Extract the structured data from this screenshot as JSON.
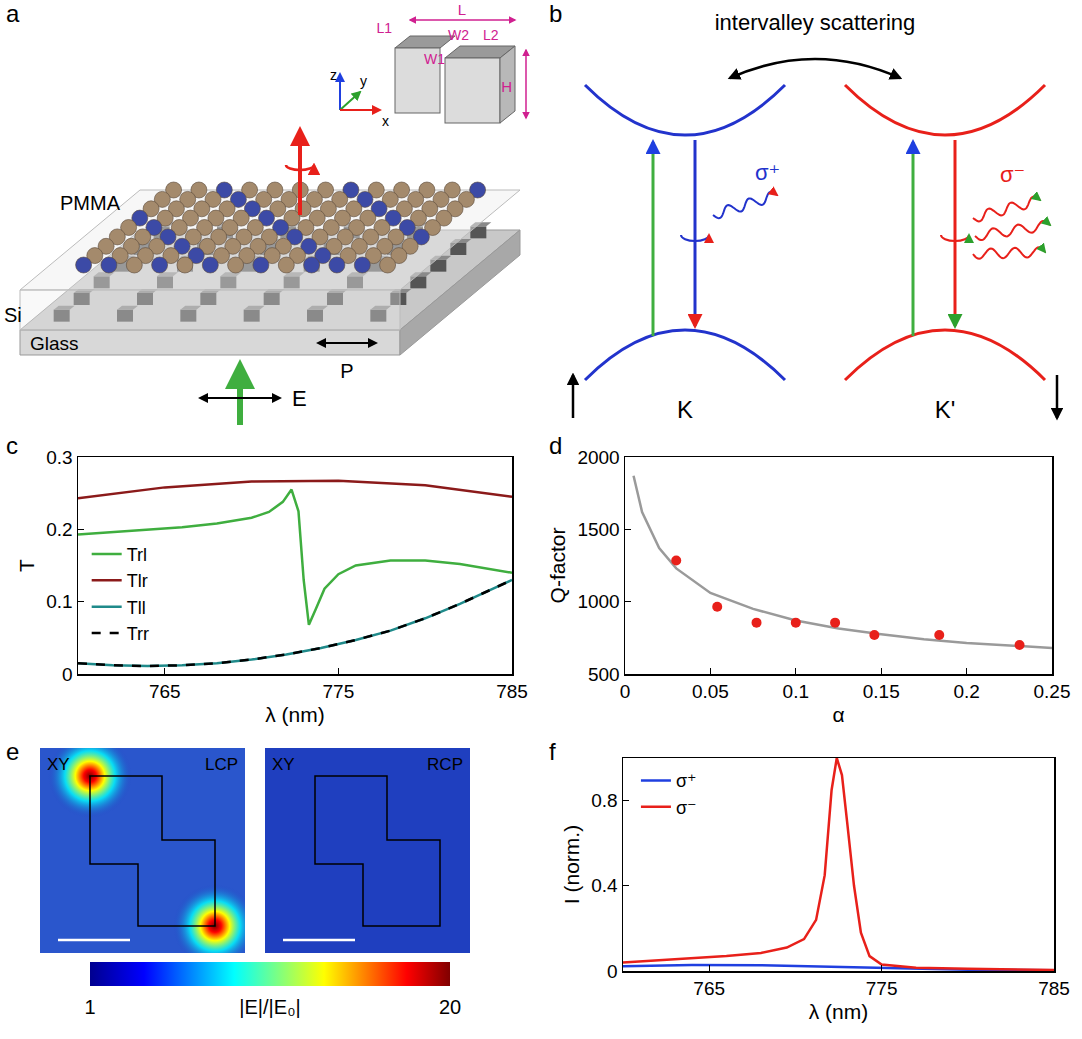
{
  "chart_data": [
    {
      "panel": "c",
      "type": "line",
      "x_label": "λ (nm)",
      "y_label": "T",
      "xlim": [
        760,
        785
      ],
      "xticks": [
        765,
        775,
        785
      ],
      "ylim": [
        0,
        0.3
      ],
      "yticks": [
        0,
        0.1,
        0.2,
        0.3
      ],
      "grid": false,
      "legend": "center left",
      "series": [
        {
          "name": "Trl",
          "color": "#3fae3f",
          "line_style": "solid",
          "x": [
            760,
            762,
            764,
            766,
            768,
            770,
            771,
            771.8,
            772.3,
            772.7,
            773,
            773.3,
            773.7,
            774.2,
            775,
            776,
            778,
            780,
            782,
            785
          ],
          "values": [
            0.193,
            0.196,
            0.199,
            0.203,
            0.208,
            0.216,
            0.224,
            0.238,
            0.255,
            0.225,
            0.13,
            0.068,
            0.09,
            0.118,
            0.138,
            0.15,
            0.157,
            0.157,
            0.152,
            0.14
          ]
        },
        {
          "name": "Tlr",
          "color": "#8b1a1a",
          "line_style": "solid",
          "x": [
            760,
            765,
            770,
            775,
            780,
            785
          ],
          "values": [
            0.243,
            0.258,
            0.266,
            0.267,
            0.261,
            0.245
          ]
        },
        {
          "name": "Tll",
          "color": "#1f8a8a",
          "line_style": "solid",
          "x": [
            760,
            762,
            764,
            766,
            768,
            770,
            772,
            774,
            776,
            778,
            780,
            782,
            785
          ],
          "values": [
            0.015,
            0.012,
            0.011,
            0.012,
            0.015,
            0.02,
            0.027,
            0.036,
            0.047,
            0.06,
            0.077,
            0.097,
            0.13
          ]
        },
        {
          "name": "Trr",
          "color": "#000000",
          "line_style": "dashed",
          "x": [
            760,
            762,
            764,
            766,
            768,
            770,
            772,
            774,
            776,
            778,
            780,
            782,
            785
          ],
          "values": [
            0.015,
            0.012,
            0.011,
            0.012,
            0.015,
            0.02,
            0.027,
            0.036,
            0.047,
            0.06,
            0.077,
            0.097,
            0.13
          ]
        }
      ]
    },
    {
      "panel": "d",
      "type": "scatter",
      "x_label": "α",
      "y_label": "Q-factor",
      "xlim": [
        0,
        0.25
      ],
      "xticks": [
        0,
        0.05,
        0.1,
        0.15,
        0.2,
        0.25
      ],
      "ylim": [
        500,
        2000
      ],
      "yticks": [
        500,
        1000,
        1500,
        2000
      ],
      "grid": false,
      "series": [
        {
          "type": "line",
          "color": "#9a9a9a",
          "line_style": "solid",
          "x": [
            0.005,
            0.01,
            0.02,
            0.03,
            0.05,
            0.075,
            0.1,
            0.125,
            0.15,
            0.175,
            0.2,
            0.225,
            0.25
          ],
          "values": [
            1870,
            1620,
            1370,
            1230,
            1060,
            950,
            870,
            815,
            775,
            740,
            715,
            695,
            680
          ]
        },
        {
          "type": "scatter",
          "color": "#e8201a",
          "marker": "circle",
          "x": [
            0.03,
            0.054,
            0.077,
            0.1,
            0.123,
            0.146,
            0.184,
            0.231
          ],
          "values": [
            1285,
            965,
            855,
            855,
            855,
            770,
            770,
            700
          ]
        }
      ]
    },
    {
      "panel": "f",
      "type": "line",
      "x_label": "λ (nm)",
      "y_label": "I (norm.)",
      "xlim": [
        760,
        785
      ],
      "xticks": [
        765,
        775,
        785
      ],
      "ylim": [
        0,
        1
      ],
      "yticks": [
        0,
        0.4,
        0.8
      ],
      "grid": false,
      "legend": "upper left",
      "series": [
        {
          "name": "σ⁺",
          "color": "#1f3fe0",
          "line_style": "solid",
          "x": [
            760,
            764,
            768,
            772,
            776,
            780,
            785
          ],
          "values": [
            0.022,
            0.028,
            0.027,
            0.02,
            0.012,
            0.006,
            0.003
          ]
        },
        {
          "name": "σ⁻",
          "color": "#e8201a",
          "line_style": "solid",
          "x": [
            760,
            763,
            766,
            768,
            769.5,
            770.5,
            771.2,
            771.7,
            772.1,
            772.4,
            772.7,
            773,
            773.4,
            773.8,
            774.3,
            775,
            777,
            780,
            785
          ],
          "values": [
            0.04,
            0.055,
            0.07,
            0.085,
            0.11,
            0.15,
            0.24,
            0.45,
            0.85,
            1.0,
            0.92,
            0.7,
            0.4,
            0.18,
            0.07,
            0.03,
            0.015,
            0.01,
            0.005
          ]
        }
      ]
    }
  ],
  "diagrams": {
    "setup": {
      "panel": "a",
      "cover": "PMMA",
      "pillars": "Si",
      "substrate": "Glass",
      "period": "P",
      "field": "E",
      "inset": {
        "length": "L",
        "length1": "L1",
        "length2": "L2",
        "width1": "W1",
        "width2": "W2",
        "height": "H",
        "axis_x": "x",
        "axis_y": "y",
        "axis_z": "z"
      }
    },
    "valleys": {
      "panel": "b",
      "title": "intervalley scattering",
      "left_valley": "K",
      "right_valley": "K'",
      "left_emission": "σ⁺",
      "right_emission": "σ⁻"
    },
    "field_maps": {
      "panel": "e",
      "maps": [
        {
          "plane": "XY",
          "polarization": "LCP"
        },
        {
          "plane": "XY",
          "polarization": "RCP"
        }
      ],
      "colorbar": {
        "range": [
          1,
          20
        ],
        "ticks": [
          1,
          20
        ],
        "label": "|E|/|E₀|"
      }
    }
  }
}
